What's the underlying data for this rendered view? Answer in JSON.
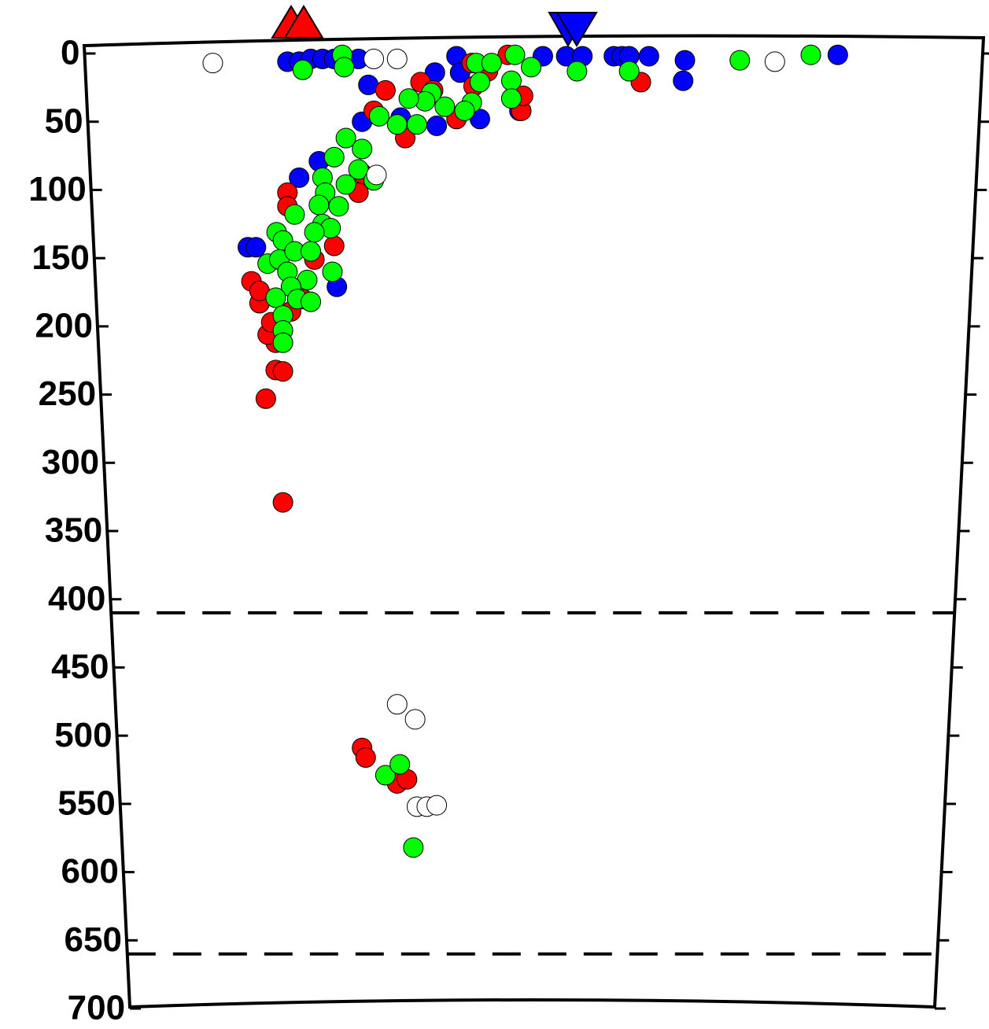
{
  "chart_data": {
    "type": "scatter",
    "ylim": [
      0,
      700
    ],
    "yticks": [
      0,
      50,
      100,
      150,
      200,
      250,
      300,
      350,
      400,
      450,
      500,
      550,
      600,
      650,
      700
    ],
    "y_inverted": true,
    "xlim": [
      0,
      100
    ],
    "reference_lines": [
      410,
      660
    ],
    "series": [
      {
        "color": "#0000ff",
        "x": [
          22.6,
          23.9,
          25.2,
          26.5,
          27.8,
          30.5,
          31.6,
          30.9,
          23.9,
          26.1,
          18.2,
          19.1,
          28.1,
          35.2,
          39.2,
          39.0,
          41.4,
          44.0,
          48.4,
          51.0,
          53.6,
          55.4,
          58.9,
          59.8,
          60.6,
          62.8,
          66.8,
          66.6,
          83.8,
          41.8
        ],
        "values": [
          6,
          6,
          4,
          4,
          4,
          4,
          23,
          50,
          91,
          79,
          142,
          142,
          171,
          47,
          53,
          14,
          2,
          48,
          42,
          2,
          2,
          2,
          2,
          2,
          2,
          2,
          5,
          20,
          1,
          14
        ]
      },
      {
        "color": "#ff0000",
        "x": [
          22.1,
          20.2,
          21.3,
          22.1,
          21.3,
          20.4,
          20.8,
          19.5,
          18.6,
          19.5,
          23.0,
          24.3,
          22.6,
          22.6,
          27.8,
          25.6,
          30.5,
          30.9,
          32.2,
          33.5,
          35.7,
          37.4,
          38.8,
          41.4,
          43.1,
          44.9,
          48.6,
          47.1,
          48.8,
          61.9,
          30.9,
          31.3,
          34.8,
          35.9,
          43.3
        ],
        "values": [
          329,
          253,
          232,
          233,
          212,
          206,
          197,
          183,
          167,
          174,
          189,
          180,
          102,
          112,
          141,
          151,
          102,
          88,
          42,
          27,
          62,
          21,
          27,
          48,
          7,
          13,
          42,
          1,
          31,
          21,
          509,
          516,
          535,
          532,
          24
        ]
      },
      {
        "color": "#00ff00",
        "x": [
          28.7,
          24.3,
          28.9,
          43.6,
          45.3,
          47.9,
          49.7,
          47.5,
          47.5,
          44.0,
          43.1,
          42.3,
          40.1,
          38.6,
          37.9,
          36.1,
          37.0,
          34.8,
          32.8,
          29.1,
          30.9,
          30.5,
          32.2,
          27.8,
          26.5,
          29.1,
          26.8,
          26.1,
          28.3,
          26.5,
          27.4,
          25.6,
          23.4,
          21.4,
          22.1,
          20.4,
          21.7,
          23.4,
          25.2,
          22.6,
          24.8,
          27.6,
          23.0,
          21.3,
          23.7,
          25.2,
          22.1,
          22.1,
          22.1,
          54.8,
          60.6,
          72.9,
          80.8,
          33.5,
          35.1,
          36.6
        ],
        "values": [
          1,
          12,
          10,
          7,
          7,
          1,
          10,
          20,
          33,
          21,
          36,
          42,
          39,
          29,
          35,
          33,
          52,
          52,
          46,
          62,
          70,
          85,
          93,
          76,
          91,
          96,
          102,
          111,
          112,
          125,
          128,
          131,
          118,
          131,
          137,
          154,
          151,
          145,
          145,
          160,
          166,
          160,
          171,
          179,
          180,
          182,
          192,
          203,
          212,
          13,
          13,
          5,
          1,
          529,
          521,
          582
        ]
      },
      {
        "color": "#ffffff",
        "x": [
          14.3,
          32.2,
          34.8,
          76.8,
          32.5,
          34.8,
          36.8,
          37.0,
          38.1,
          39.2
        ],
        "values": [
          7,
          4,
          4,
          6,
          89,
          477,
          488,
          552,
          552,
          551
        ]
      }
    ]
  }
}
